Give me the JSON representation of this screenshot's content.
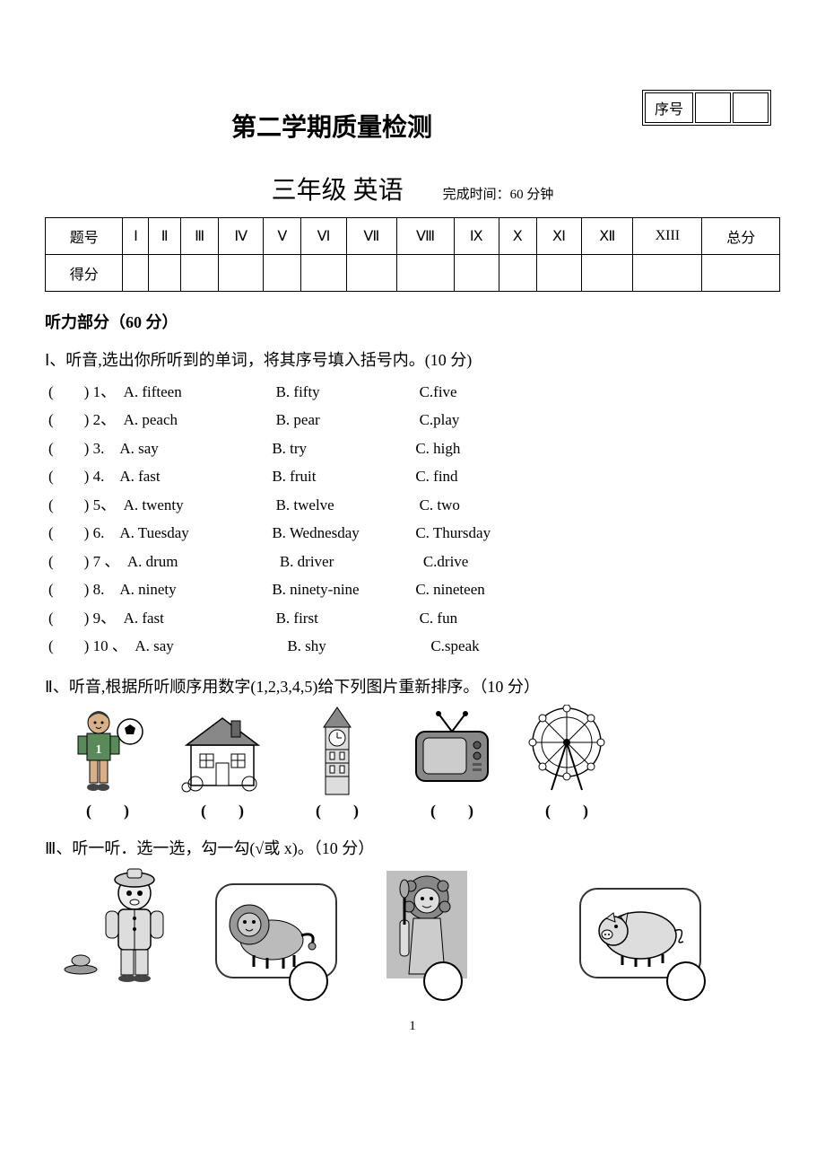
{
  "serial_label": "序号",
  "title_main": "第二学期质量检测",
  "title_sub": "三年级 英语",
  "time_label": "完成时间：60 分钟",
  "score_table": {
    "row_label1": "题号",
    "row_label2": "得分",
    "total_label": "总分",
    "cols": [
      "Ⅰ",
      "Ⅱ",
      "Ⅲ",
      "Ⅳ",
      "Ⅴ",
      "Ⅵ",
      "Ⅶ",
      "Ⅷ",
      "Ⅸ",
      "Ⅹ",
      "Ⅺ",
      "Ⅻ",
      "XIII"
    ]
  },
  "section1_header": "听力部分（60 分）",
  "q1": {
    "header": "Ⅰ、听音,选出你所听到的单词，将其序号填入括号内。(10 分)",
    "items": [
      {
        "n": "1、",
        "a": "A. fifteen",
        "b": "B. fifty",
        "c": "C.five"
      },
      {
        "n": "2、",
        "a": "A. peach",
        "b": "B. pear",
        "c": "C.play"
      },
      {
        "n": "3.",
        "a": "A. say",
        "b": "B. try",
        "c": "C. high"
      },
      {
        "n": "4.",
        "a": "A. fast",
        "b": "B. fruit",
        "c": "C. find"
      },
      {
        "n": "5、",
        "a": "A. twenty",
        "b": "B. twelve",
        "c": "C. two"
      },
      {
        "n": "6.",
        "a": "A. Tuesday",
        "b": "B. Wednesday",
        "c": "C. Thursday"
      },
      {
        "n": "7 、",
        "a": "A. drum",
        "b": "B. driver",
        "c": "C.drive"
      },
      {
        "n": "8.",
        "a": "A. ninety",
        "b": "B. ninety-nine",
        "c": "C. nineteen"
      },
      {
        "n": "9、",
        "a": "A. fast",
        "b": "B. first",
        "c": "C. fun"
      },
      {
        "n": "10 、",
        "a": "A. say",
        "b": "B. shy",
        "c": "C.speak"
      }
    ]
  },
  "q2": {
    "header": "Ⅱ、听音,根据所听顺序用数字(1,2,3,4,5)给下列图片重新排序。（10 分）",
    "paren": "(　　)"
  },
  "q3": {
    "header": "Ⅲ、听一听．选一选，勾一勾(√或 x)。（10 分）"
  },
  "page_number": "1"
}
